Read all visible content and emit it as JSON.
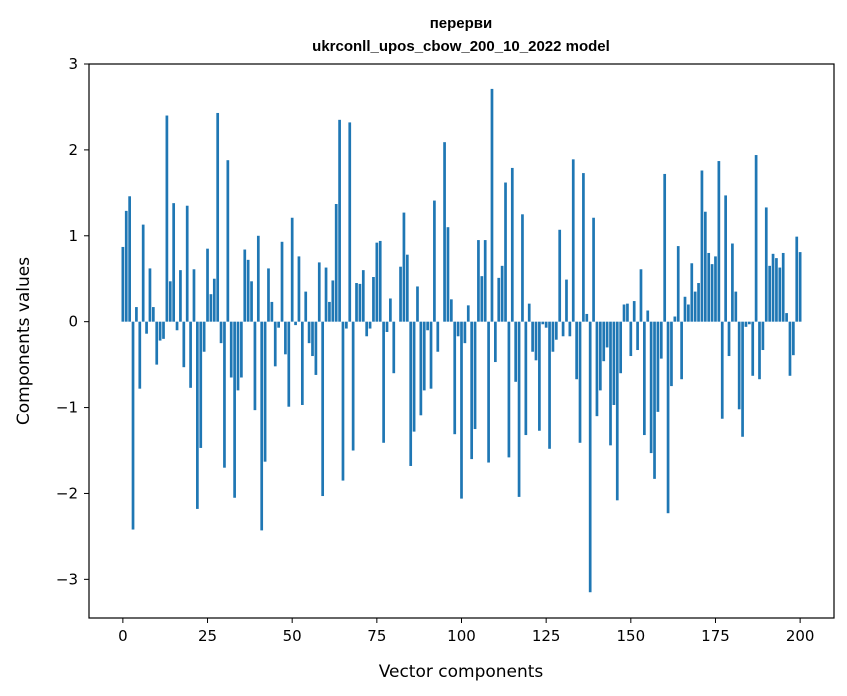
{
  "chart_data": {
    "type": "bar",
    "title_line1": "перерви",
    "title_line2": "ukrconll_upos_cbow_200_10_2022 model",
    "xlabel": "Vector components",
    "ylabel": "Components values",
    "xlim": [
      -10,
      210
    ],
    "ylim": [
      -3.45,
      3.0
    ],
    "xticks": [
      0,
      25,
      50,
      75,
      100,
      125,
      150,
      175,
      200
    ],
    "yticks": [
      -3,
      -2,
      -1,
      0,
      1,
      2,
      3
    ],
    "ytick_labels": [
      "−3",
      "−2",
      "−1",
      "0",
      "1",
      "2",
      "3"
    ],
    "bar_color": "#1f77b4",
    "grid": false,
    "values": [
      0.87,
      1.29,
      1.46,
      -2.42,
      0.17,
      -0.78,
      1.13,
      -0.14,
      0.62,
      0.17,
      -0.5,
      -0.22,
      -0.2,
      2.4,
      0.47,
      1.38,
      -0.1,
      0.6,
      -0.53,
      1.35,
      -0.77,
      0.61,
      -2.18,
      -1.47,
      -0.35,
      0.85,
      0.32,
      0.5,
      2.43,
      -0.25,
      -1.7,
      1.88,
      -0.65,
      -2.05,
      -0.8,
      -0.65,
      0.84,
      0.72,
      0.47,
      -1.03,
      1.0,
      -2.43,
      -1.63,
      0.62,
      0.23,
      -0.52,
      -0.07,
      0.93,
      -0.38,
      -0.99,
      1.21,
      -0.04,
      0.76,
      -0.97,
      0.35,
      -0.25,
      -0.4,
      -0.62,
      0.69,
      -2.03,
      0.63,
      0.23,
      0.48,
      1.37,
      2.35,
      -1.85,
      -0.08,
      2.32,
      -1.5,
      0.45,
      0.44,
      0.6,
      -0.17,
      -0.08,
      0.52,
      0.92,
      0.94,
      -1.41,
      -0.12,
      0.27,
      -0.6,
      0.0,
      0.64,
      1.27,
      0.78,
      -1.68,
      -1.28,
      0.41,
      -1.09,
      -0.8,
      -0.1,
      -0.78,
      1.41,
      -0.35,
      0.0,
      2.09,
      1.1,
      0.26,
      -1.31,
      -0.17,
      -2.06,
      -0.25,
      0.19,
      -1.6,
      -1.25,
      0.95,
      0.53,
      0.95,
      -1.64,
      2.71,
      -0.47,
      0.51,
      0.65,
      1.62,
      -1.58,
      1.79,
      -0.7,
      -2.04,
      1.25,
      -1.32,
      0.21,
      -0.35,
      -0.45,
      -1.27,
      -0.03,
      -0.07,
      -1.48,
      -0.35,
      -0.21,
      1.07,
      -0.17,
      0.49,
      -0.17,
      1.89,
      -0.67,
      -1.41,
      1.73,
      0.09,
      -3.15,
      1.21,
      -1.1,
      -0.8,
      -0.46,
      -0.3,
      -1.44,
      -0.97,
      -2.08,
      -0.6,
      0.2,
      0.21,
      -0.4,
      0.24,
      -0.33,
      0.61,
      -1.32,
      0.13,
      -1.53,
      -1.83,
      -1.05,
      -0.43,
      1.72,
      -2.23,
      -0.75,
      0.06,
      0.88,
      -0.67,
      0.29,
      0.2,
      0.68,
      0.35,
      0.45,
      1.76,
      1.28,
      0.8,
      0.67,
      0.76,
      1.87,
      -1.13,
      1.47,
      -0.4,
      0.91,
      0.35,
      -1.02,
      -1.34,
      -0.06,
      -0.03,
      -0.63,
      1.94,
      -0.67,
      -0.33,
      1.33,
      0.65,
      0.79,
      0.74,
      0.63,
      0.8,
      0.1,
      -0.63,
      -0.39,
      0.99,
      0.81
    ]
  }
}
